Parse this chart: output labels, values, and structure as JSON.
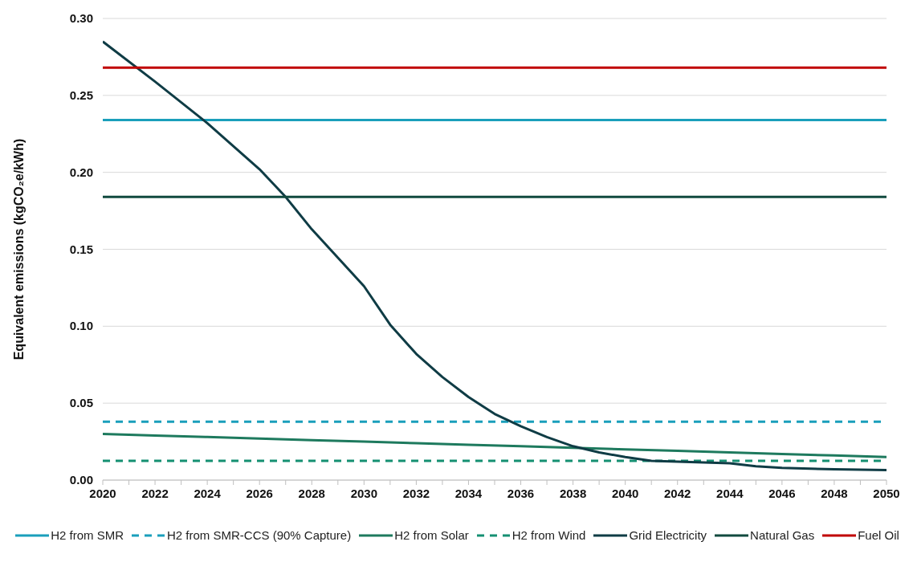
{
  "chart_data": {
    "type": "line",
    "ylabel": "Equivalent emissions (kgCO₂e/kWh)",
    "xlim": [
      2020,
      2050
    ],
    "xticks": [
      2020,
      {
        "value": 2021,
        "label": null
      },
      2022,
      {
        "value": 2023,
        "label": null
      },
      2024,
      {
        "value": 2025,
        "label": null
      },
      2026,
      {
        "value": 2027,
        "label": null
      },
      2028,
      {
        "value": 2029,
        "label": null
      },
      2030,
      {
        "value": 2031,
        "label": null
      },
      2032,
      {
        "value": 2033,
        "label": null
      },
      2034,
      {
        "value": 2035,
        "label": null
      },
      2036,
      {
        "value": 2037,
        "label": null
      },
      2038,
      {
        "value": 2039,
        "label": null
      },
      2040,
      {
        "value": 2041,
        "label": null
      },
      2042,
      {
        "value": 2043,
        "label": null
      },
      2044,
      {
        "value": 2045,
        "label": null
      },
      2046,
      {
        "value": 2047,
        "label": null
      },
      2048,
      {
        "value": 2049,
        "label": null
      },
      2050
    ],
    "ylim": [
      0,
      0.3
    ],
    "yticks": [
      {
        "value": 0,
        "label": "0.00"
      },
      {
        "value": 0.05,
        "label": "0.05"
      },
      {
        "value": 0.1,
        "label": "0.10"
      },
      {
        "value": 0.15,
        "label": "0.15"
      },
      {
        "value": 0.2,
        "label": "0.20"
      },
      {
        "value": 0.25,
        "label": "0.25"
      },
      {
        "value": 0.3,
        "label": "0.30"
      }
    ],
    "grid": "y",
    "legend": "bottom",
    "marker": "none",
    "series": [
      {
        "name": "H2 from SMR",
        "color": "#1a9fbb",
        "x": [
          2020,
          2050
        ],
        "values": [
          0.234,
          0.234
        ]
      },
      {
        "name": "H2 from SMR-CCS (90% Capture)",
        "color": "#1a9fbb",
        "line_style": "dashed",
        "x": [
          2020,
          2050
        ],
        "values": [
          0.038,
          0.038
        ]
      },
      {
        "name": "H2 from Solar",
        "color": "#1e7a5e",
        "x": [
          2020,
          2022,
          2024,
          2026,
          2028,
          2030,
          2032,
          2034,
          2036,
          2038,
          2040,
          2042,
          2044,
          2046,
          2048,
          2050
        ],
        "values": [
          0.03,
          0.029,
          0.028,
          0.027,
          0.026,
          0.025,
          0.024,
          0.023,
          0.022,
          0.021,
          0.02,
          0.019,
          0.018,
          0.017,
          0.016,
          0.015
        ]
      },
      {
        "name": "H2 from Wind",
        "color": "#159072",
        "line_style": "dashed",
        "x": [
          2020,
          2050
        ],
        "values": [
          0.0125,
          0.0125
        ]
      },
      {
        "name": "Grid Electricity",
        "color": "#0f3c45",
        "x": [
          2020,
          2022,
          2024,
          2026,
          2027,
          2028,
          2030,
          2031,
          2032,
          2033,
          2034,
          2035,
          2036,
          2037,
          2038,
          2039,
          2040,
          2041,
          2042,
          2044,
          2045,
          2046,
          2048,
          2050
        ],
        "values": [
          0.285,
          0.259,
          0.232,
          0.202,
          0.184,
          0.163,
          0.126,
          0.101,
          0.082,
          0.067,
          0.054,
          0.043,
          0.035,
          0.028,
          0.022,
          0.018,
          0.015,
          0.0125,
          0.012,
          0.011,
          0.009,
          0.008,
          0.007,
          0.0065
        ]
      },
      {
        "name": "Natural Gas",
        "color": "#114a3f",
        "x": [
          2020,
          2050
        ],
        "values": [
          0.184,
          0.184
        ]
      },
      {
        "name": "Fuel Oil",
        "color": "#c00000",
        "x": [
          2020,
          2050
        ],
        "values": [
          0.268,
          0.268
        ]
      }
    ]
  }
}
